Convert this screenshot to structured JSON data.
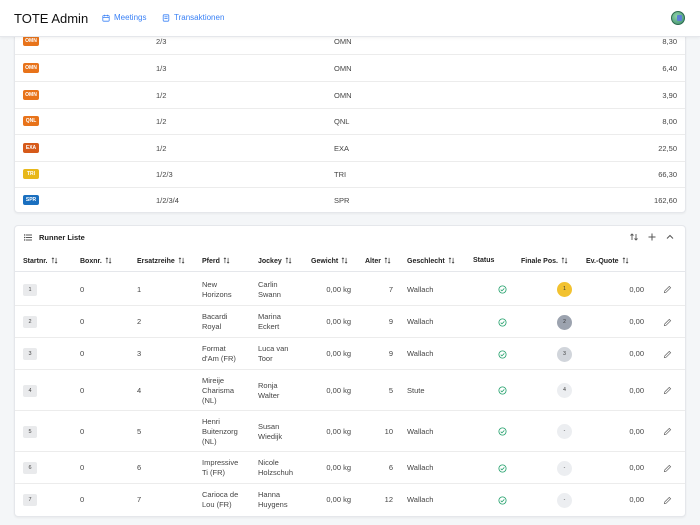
{
  "app": {
    "title": "TOTE Admin"
  },
  "nav": {
    "meetings": "Meetings",
    "transactions": "Transaktionen"
  },
  "results": [
    {
      "badge": "OMN",
      "color": "#e8731a",
      "combination": "2/3",
      "type": "OMN",
      "quote": "8,30"
    },
    {
      "badge": "OMN",
      "color": "#e8731a",
      "combination": "1/3",
      "type": "OMN",
      "quote": "6,40"
    },
    {
      "badge": "OMN",
      "color": "#e8731a",
      "combination": "1/2",
      "type": "OMN",
      "quote": "3,90"
    },
    {
      "badge": "QNL",
      "color": "#e8731a",
      "combination": "1/2",
      "type": "QNL",
      "quote": "8,00"
    },
    {
      "badge": "EXA",
      "color": "#d65a1a",
      "combination": "1/2",
      "type": "EXA",
      "quote": "22,50"
    },
    {
      "badge": "TRI",
      "color": "#e8b81a",
      "combination": "1/2/3",
      "type": "TRI",
      "quote": "66,30"
    },
    {
      "badge": "SPR",
      "color": "#1a6fbf",
      "combination": "1/2/3/4",
      "type": "SPR",
      "quote": "162,60"
    }
  ],
  "runner": {
    "title": "Runner Liste",
    "columns": [
      "Startnr.",
      "Boxnr.",
      "Ersatzreihe",
      "Pferd",
      "Jockey",
      "Gewicht",
      "Alter",
      "Geschlecht",
      "Status",
      "Finale Pos.",
      "Ev.-Quote"
    ],
    "rows": [
      {
        "start": "1",
        "box": "0",
        "ersatz": "1",
        "horse": [
          "New",
          "Horizons"
        ],
        "jockey": [
          "Carlin",
          "Swann"
        ],
        "weight": "0,00 kg",
        "age": "7",
        "sex": "Wallach",
        "pos": "1",
        "quote": "0,00"
      },
      {
        "start": "2",
        "box": "0",
        "ersatz": "2",
        "horse": [
          "Bacardi",
          "Royal"
        ],
        "jockey": [
          "Marina",
          "Eckert"
        ],
        "weight": "0,00 kg",
        "age": "9",
        "sex": "Wallach",
        "pos": "2",
        "quote": "0,00"
      },
      {
        "start": "3",
        "box": "0",
        "ersatz": "3",
        "horse": [
          "Format",
          "d'Am (FR)"
        ],
        "jockey": [
          "Luca van",
          "Toor"
        ],
        "weight": "0,00 kg",
        "age": "9",
        "sex": "Wallach",
        "pos": "3",
        "quote": "0,00"
      },
      {
        "start": "4",
        "box": "0",
        "ersatz": "4",
        "horse": [
          "Mireije",
          "Charisma",
          "(NL)"
        ],
        "jockey": [
          "Ronja",
          "Walter"
        ],
        "weight": "0,00 kg",
        "age": "5",
        "sex": "Stute",
        "pos": "4",
        "quote": "0,00"
      },
      {
        "start": "5",
        "box": "0",
        "ersatz": "5",
        "horse": [
          "Henri",
          "Buitenzorg",
          "(NL)"
        ],
        "jockey": [
          "Susan",
          "Wiedijk"
        ],
        "weight": "0,00 kg",
        "age": "10",
        "sex": "Wallach",
        "pos": "-",
        "quote": "0,00"
      },
      {
        "start": "6",
        "box": "0",
        "ersatz": "6",
        "horse": [
          "Impressive",
          "Ti (FR)"
        ],
        "jockey": [
          "Nicole",
          "Holzschuh"
        ],
        "weight": "0,00 kg",
        "age": "6",
        "sex": "Wallach",
        "pos": "-",
        "quote": "0,00"
      },
      {
        "start": "7",
        "box": "0",
        "ersatz": "7",
        "horse": [
          "Carioca de",
          "Lou (FR)"
        ],
        "jockey": [
          "Hanna",
          "Huygens"
        ],
        "weight": "0,00 kg",
        "age": "12",
        "sex": "Wallach",
        "pos": "-",
        "quote": "0,00"
      }
    ]
  },
  "colors": {
    "gold": "#f2c230",
    "silver": "#9ca3af",
    "bronze": "#d1d5db",
    "neutral": "#eceef1",
    "status_ok": "#22a06b",
    "accent": "#3b82f6"
  },
  "icons": {
    "meetings": "calendar-icon",
    "transactions": "receipt-icon",
    "runner_title": "list-icon",
    "sort": "sort-arrows-icon",
    "add": "plus-icon",
    "collapse": "chevron-up-icon",
    "status": "check-circle-icon",
    "edit": "pencil-icon"
  }
}
